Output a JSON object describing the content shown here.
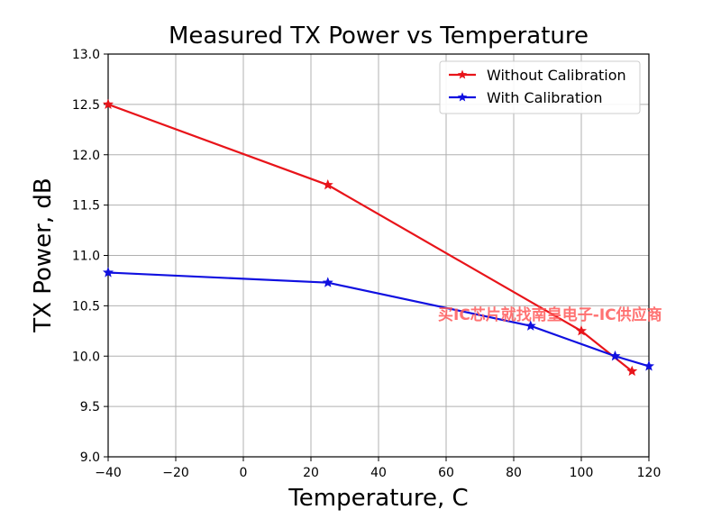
{
  "chart_data": {
    "type": "line",
    "title": "Measured TX Power vs Temperature",
    "xlabel": "Temperature, C",
    "ylabel": "TX Power, dB",
    "xlim": [
      -40,
      120
    ],
    "ylim": [
      9.0,
      13.0
    ],
    "xticks": [
      -40,
      -20,
      0,
      20,
      40,
      60,
      80,
      100,
      120
    ],
    "yticks": [
      9.0,
      9.5,
      10.0,
      10.5,
      11.0,
      11.5,
      12.0,
      12.5,
      13.0
    ],
    "xtick_labels": [
      "−40",
      "−20",
      "0",
      "20",
      "40",
      "60",
      "80",
      "100",
      "120"
    ],
    "ytick_labels": [
      "9.0",
      "9.5",
      "10.0",
      "10.5",
      "11.0",
      "11.5",
      "12.0",
      "12.5",
      "13.0"
    ],
    "grid": true,
    "legend_position": "top-right",
    "series": [
      {
        "name": "Without Calibration",
        "color": "#e8141a",
        "marker": "star",
        "x": [
          -40,
          25,
          100,
          115
        ],
        "y": [
          12.5,
          11.7,
          10.25,
          9.85
        ]
      },
      {
        "name": "With Calibration",
        "color": "#1010e0",
        "marker": "star",
        "x": [
          -40,
          25,
          85,
          110,
          120
        ],
        "y": [
          10.83,
          10.73,
          10.3,
          10.0,
          9.9
        ]
      }
    ]
  },
  "watermark": "买IC芯片就找南皇电子-IC供应商"
}
